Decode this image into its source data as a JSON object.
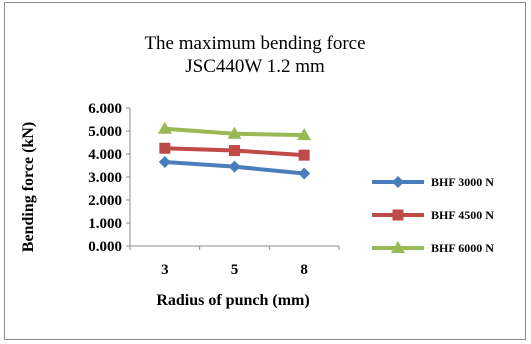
{
  "chart_data": {
    "type": "line",
    "title": "The maximum bending force",
    "subtitle": "JSC440W 1.2 mm",
    "xlabel": "Radius of punch (mm)",
    "ylabel": "Bending force (kN)",
    "categories": [
      "3",
      "5",
      "8"
    ],
    "ylim": [
      0,
      6
    ],
    "yticks": [
      "0.000",
      "1.000",
      "2.000",
      "3.000",
      "4.000",
      "5.000",
      "6.000"
    ],
    "grid": false,
    "legend_position": "right",
    "series": [
      {
        "name": "BHF 3000 N",
        "values": [
          3.65,
          3.45,
          3.15
        ],
        "color": "#4a7ebb",
        "marker": "diamond"
      },
      {
        "name": "BHF 4500 N",
        "values": [
          4.25,
          4.15,
          3.95
        ],
        "color": "#be4b48",
        "marker": "square"
      },
      {
        "name": "BHF 6000 N",
        "values": [
          5.1,
          4.88,
          4.82
        ],
        "color": "#98b954",
        "marker": "triangle"
      }
    ]
  }
}
